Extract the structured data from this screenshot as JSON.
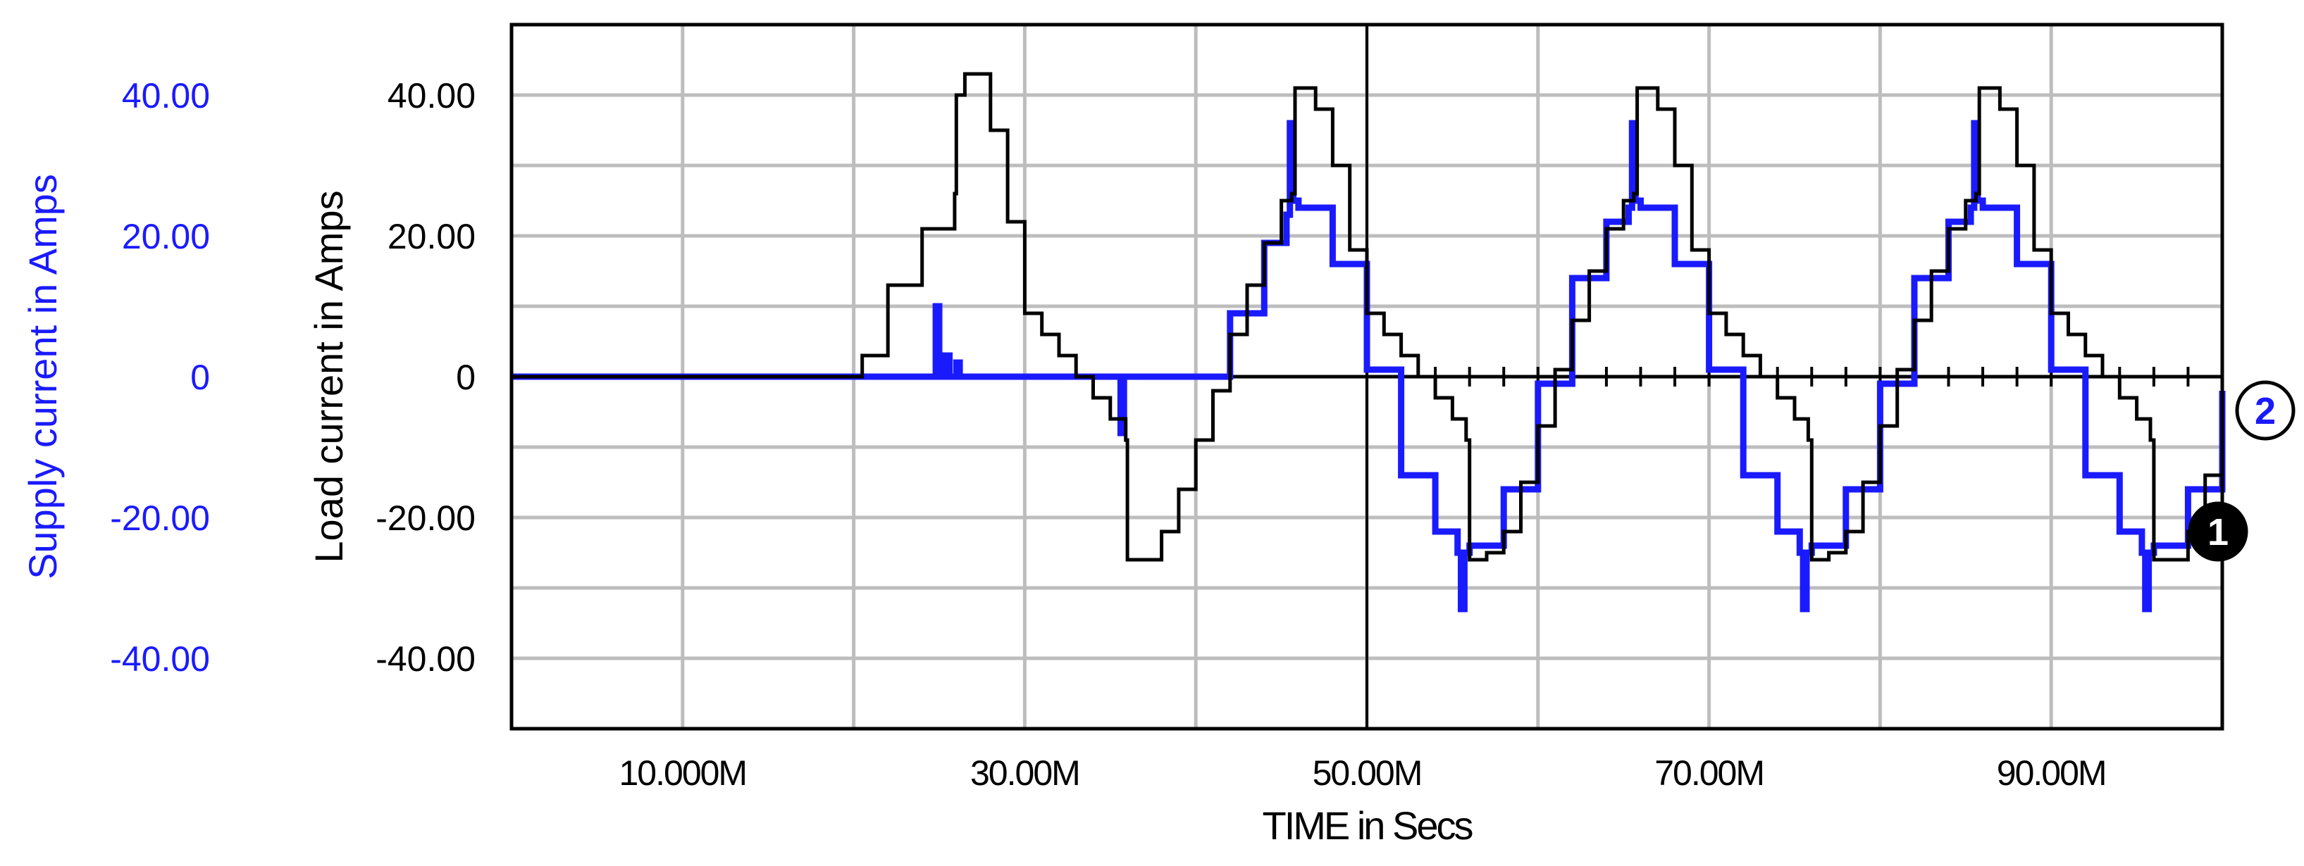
{
  "chart_data": {
    "type": "line",
    "xlabel": "TIME in Secs",
    "ylabel_left_outer": "Supply current in Amps",
    "ylabel_left_inner": "Load current in Amps",
    "xlim": [
      0,
      100
    ],
    "ylim": [
      -50,
      50
    ],
    "x_ticks": [
      {
        "value": 10,
        "label": "10.000M"
      },
      {
        "value": 30,
        "label": "30.00M"
      },
      {
        "value": 50,
        "label": "50.00M"
      },
      {
        "value": 70,
        "label": "70.00M"
      },
      {
        "value": 90,
        "label": "90.00M"
      }
    ],
    "y_ticks_load": [
      {
        "value": 40,
        "label": "40.00"
      },
      {
        "value": 20,
        "label": "20.00"
      },
      {
        "value": 0,
        "label": "0"
      },
      {
        "value": -20,
        "label": "-20.00"
      },
      {
        "value": -40,
        "label": "-40.00"
      }
    ],
    "y_ticks_supply": [
      {
        "value": 40,
        "label": "40.00"
      },
      {
        "value": 20,
        "label": "20.00"
      },
      {
        "value": 0,
        "label": "0"
      },
      {
        "value": -20,
        "label": "-20.00"
      },
      {
        "value": -40,
        "label": "-40.00"
      }
    ],
    "grid": true,
    "cursor_x": 50,
    "series": [
      {
        "id": "1",
        "marker_label": "1",
        "color": "#000000",
        "axis": "Load current in Amps",
        "x": [
          0,
          20,
          20.5,
          22,
          24,
          25.9,
          26,
          26.5,
          28,
          29,
          30,
          31,
          32,
          33,
          34,
          35,
          35.9,
          36,
          36.8,
          38,
          39,
          40,
          41,
          42,
          43,
          44,
          45,
          45.6,
          45.8,
          46.2,
          47,
          48,
          49,
          50,
          51,
          52,
          53,
          54,
          55,
          55.8,
          56,
          57,
          58,
          59,
          60,
          61,
          62,
          63,
          64,
          65,
          65.6,
          65.8,
          66.2,
          67,
          68,
          69,
          70,
          71,
          72,
          73,
          74,
          75,
          75.8,
          76,
          77,
          78,
          79,
          80,
          81,
          82,
          83,
          84,
          85,
          85.6,
          85.8,
          86.2,
          87,
          88,
          89,
          90,
          91,
          92,
          93,
          94,
          95,
          95.8,
          96,
          97,
          98,
          99,
          100
        ],
        "y": [
          0,
          0,
          3,
          13,
          21,
          26,
          40,
          43,
          35,
          22,
          9,
          6,
          3,
          0,
          -3,
          -6,
          -9,
          -26,
          -26,
          -22,
          -16,
          -9,
          -2,
          6,
          13,
          19,
          25,
          26,
          41,
          41,
          38,
          30,
          18,
          9,
          6,
          3,
          0,
          -3,
          -6,
          -9,
          -26,
          -25,
          -22,
          -15,
          -7,
          1,
          8,
          15,
          21,
          25,
          26,
          41,
          41,
          38,
          30,
          18,
          9,
          6,
          3,
          0,
          -3,
          -6,
          -9,
          -26,
          -25,
          -22,
          -15,
          -7,
          1,
          8,
          15,
          21,
          25,
          26,
          41,
          41,
          38,
          30,
          18,
          9,
          6,
          3,
          0,
          -3,
          -6,
          -9,
          -26,
          -26,
          -22,
          -14,
          -6
        ]
      },
      {
        "id": "2",
        "marker_label": "2",
        "color": "#1a1aff",
        "axis": "Supply current in Amps",
        "x": [
          0,
          24.6,
          24.8,
          25,
          25.3,
          25.6,
          26,
          26.2,
          35.4,
          35.6,
          35.8,
          36,
          40.5,
          42,
          44,
          45.3,
          45.5,
          45.7,
          46,
          48,
          50,
          52,
          54,
          55.3,
          55.5,
          55.7,
          56,
          58,
          60,
          62,
          64,
          65.3,
          65.5,
          65.7,
          66,
          68,
          70,
          72,
          74,
          75.3,
          75.5,
          75.7,
          76,
          78,
          80,
          82,
          84,
          85.3,
          85.5,
          85.7,
          86,
          88,
          90,
          92,
          94,
          95.3,
          95.5,
          95.7,
          96,
          98,
          100
        ],
        "y": [
          0,
          0,
          10,
          0,
          3,
          0,
          2,
          0,
          0,
          -8,
          0,
          0,
          0,
          9,
          19,
          23,
          36,
          25,
          24,
          16,
          1,
          -14,
          -22,
          -25,
          -33,
          -25,
          -24,
          -16,
          -1,
          14,
          22,
          24,
          36,
          25,
          24,
          16,
          1,
          -14,
          -22,
          -25,
          -33,
          -25,
          -24,
          -16,
          -1,
          14,
          22,
          24,
          36,
          25,
          24,
          16,
          1,
          -14,
          -22,
          -25,
          -33,
          -25,
          -24,
          -16,
          -2
        ]
      }
    ]
  }
}
